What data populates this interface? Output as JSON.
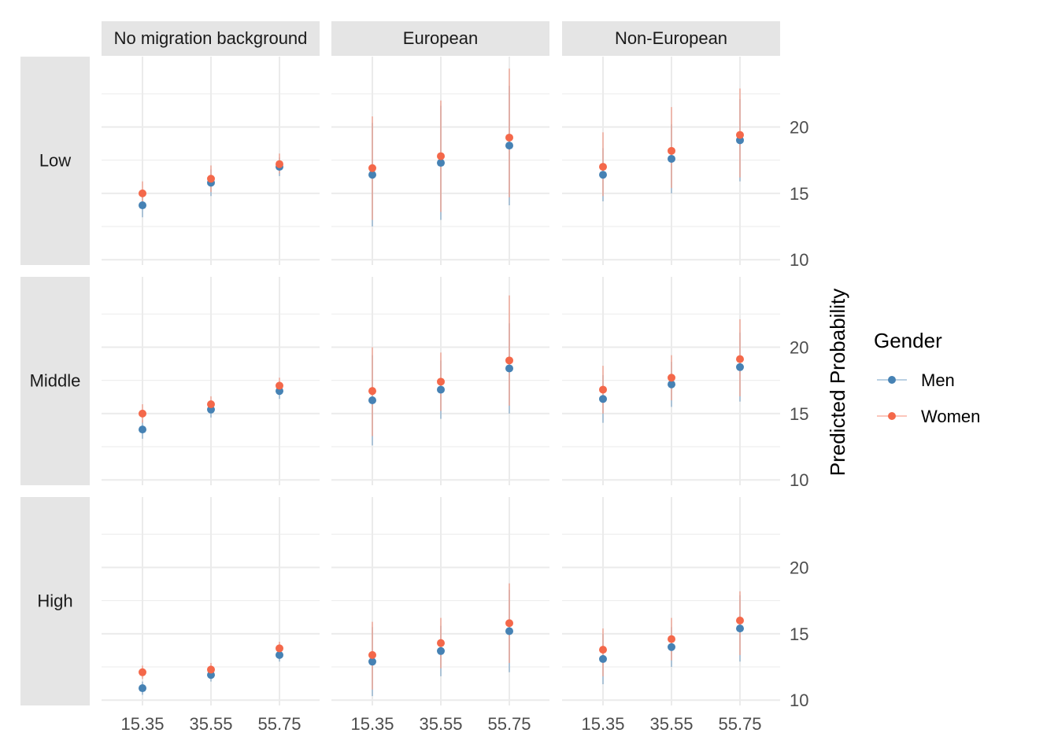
{
  "chart_data": {
    "type": "scatter",
    "facet_columns": [
      "No migration background",
      "European",
      "Non-European"
    ],
    "facet_rows": [
      "Low",
      "Middle",
      "High"
    ],
    "x_categories": [
      "15.35",
      "35.55",
      "55.75"
    ],
    "ylabel": "Predicted Probability",
    "y_ticks": [
      10,
      15,
      20
    ],
    "ylim": [
      9.6,
      25.3
    ],
    "grid": true,
    "legend": {
      "title": "Gender",
      "position": "right",
      "entries": [
        {
          "name": "Men",
          "color": "#4682b4"
        },
        {
          "name": "Women",
          "color": "#f4684a"
        }
      ]
    },
    "panels": [
      {
        "row": "Low",
        "col": "No migration background",
        "Men": {
          "y": [
            14.1,
            15.8,
            17.0
          ],
          "lo": [
            13.2,
            14.8,
            16.3
          ],
          "hi": [
            15.0,
            16.8,
            17.7
          ]
        },
        "Women": {
          "y": [
            15.0,
            16.1,
            17.2
          ],
          "lo": [
            14.1,
            15.1,
            16.5
          ],
          "hi": [
            15.9,
            17.1,
            18.0
          ]
        }
      },
      {
        "row": "Low",
        "col": "European",
        "Men": {
          "y": [
            16.4,
            17.3,
            18.6
          ],
          "lo": [
            12.5,
            13.0,
            14.1
          ],
          "hi": [
            20.3,
            21.6,
            23.1
          ]
        },
        "Women": {
          "y": [
            16.9,
            17.8,
            19.2
          ],
          "lo": [
            13.0,
            13.6,
            14.7
          ],
          "hi": [
            20.8,
            22.0,
            24.4
          ]
        }
      },
      {
        "row": "Low",
        "col": "Non-European",
        "Men": {
          "y": [
            16.4,
            17.6,
            19.0
          ],
          "lo": [
            14.4,
            15.0,
            15.9
          ],
          "hi": [
            18.4,
            20.2,
            22.1
          ]
        },
        "Women": {
          "y": [
            17.0,
            18.2,
            19.4
          ],
          "lo": [
            14.8,
            15.4,
            16.2
          ],
          "hi": [
            19.6,
            21.5,
            22.9
          ]
        }
      },
      {
        "row": "Middle",
        "col": "No migration background",
        "Men": {
          "y": [
            13.8,
            15.3,
            16.7
          ],
          "lo": [
            13.1,
            14.7,
            16.1
          ],
          "hi": [
            14.5,
            15.9,
            17.3
          ]
        },
        "Women": {
          "y": [
            15.0,
            15.7,
            17.1
          ],
          "lo": [
            14.3,
            15.1,
            16.5
          ],
          "hi": [
            15.7,
            16.3,
            17.7
          ]
        }
      },
      {
        "row": "Middle",
        "col": "European",
        "Men": {
          "y": [
            16.0,
            16.8,
            18.4
          ],
          "lo": [
            12.6,
            14.6,
            15.0
          ],
          "hi": [
            19.4,
            19.0,
            21.8
          ]
        },
        "Women": {
          "y": [
            16.7,
            17.4,
            19.0
          ],
          "lo": [
            13.3,
            15.2,
            15.6
          ],
          "hi": [
            20.0,
            19.6,
            23.9
          ]
        }
      },
      {
        "row": "Middle",
        "col": "Non-European",
        "Men": {
          "y": [
            16.1,
            17.2,
            18.5
          ],
          "lo": [
            14.3,
            15.5,
            15.9
          ],
          "hi": [
            17.9,
            18.9,
            21.1
          ]
        },
        "Women": {
          "y": [
            16.8,
            17.7,
            19.1
          ],
          "lo": [
            15.0,
            16.0,
            16.3
          ],
          "hi": [
            18.6,
            19.4,
            22.1
          ]
        }
      },
      {
        "row": "High",
        "col": "No migration background",
        "Men": {
          "y": [
            10.9,
            11.9,
            13.4
          ],
          "lo": [
            10.4,
            11.4,
            12.9
          ],
          "hi": [
            11.4,
            12.4,
            13.9
          ]
        },
        "Women": {
          "y": [
            12.1,
            12.3,
            13.9
          ],
          "lo": [
            11.6,
            11.8,
            13.4
          ],
          "hi": [
            12.6,
            12.8,
            14.4
          ]
        }
      },
      {
        "row": "High",
        "col": "European",
        "Men": {
          "y": [
            12.9,
            13.7,
            15.2
          ],
          "lo": [
            10.3,
            11.8,
            12.1
          ],
          "hi": [
            15.5,
            15.6,
            18.3
          ]
        },
        "Women": {
          "y": [
            13.4,
            14.3,
            15.8
          ],
          "lo": [
            10.8,
            12.4,
            12.8
          ],
          "hi": [
            15.9,
            16.2,
            18.8
          ]
        }
      },
      {
        "row": "High",
        "col": "Non-European",
        "Men": {
          "y": [
            13.1,
            14.0,
            15.4
          ],
          "lo": [
            11.2,
            12.5,
            12.9
          ],
          "hi": [
            15.0,
            15.5,
            17.9
          ]
        },
        "Women": {
          "y": [
            13.8,
            14.6,
            16.0
          ],
          "lo": [
            11.8,
            13.0,
            13.4
          ],
          "hi": [
            15.4,
            16.2,
            18.2
          ]
        }
      }
    ]
  }
}
